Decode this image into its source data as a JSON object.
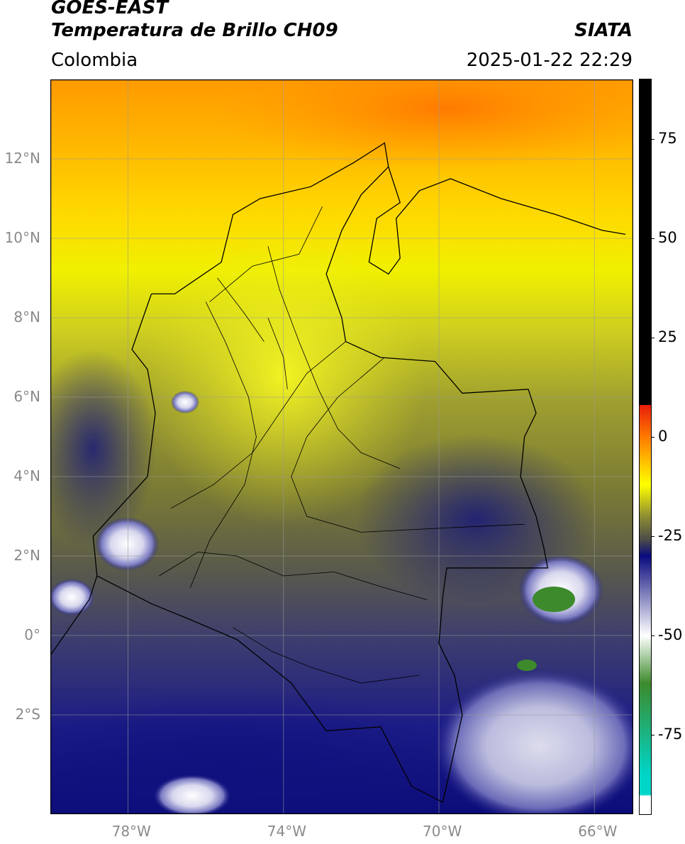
{
  "header": {
    "satellite": "GOES-EAST",
    "product": "Temperatura de Brillo CH09",
    "region": "Colombia",
    "organization": "SIATA",
    "timestamp": "2025-01-22 22:29"
  },
  "map": {
    "lat_labels": [
      "12°N",
      "10°N",
      "8°N",
      "6°N",
      "4°N",
      "2°N",
      "0°",
      "2°S"
    ],
    "lon_labels": [
      "78°W",
      "74°W",
      "70°W",
      "66°W"
    ],
    "lat_range": [
      -4.5,
      14.0
    ],
    "lon_range": [
      -80.0,
      -65.0
    ]
  },
  "colorbar": {
    "ticks": [
      "75",
      "50",
      "25",
      "0",
      "-25",
      "-50",
      "-75"
    ],
    "tick_values": [
      75,
      50,
      25,
      0,
      -25,
      -50,
      -75
    ],
    "range": [
      -95,
      90
    ],
    "colors": {
      "black": "#000000",
      "red": "#e81d0c",
      "orange": "#ff7a00",
      "yellow": "#ffff00",
      "olive": "#8e8e32",
      "gray": "#4a4a4a",
      "navy": "#0a0a7e",
      "white": "#ffffff",
      "green": "#3d8a2c",
      "teal": "#00d5c8"
    }
  }
}
